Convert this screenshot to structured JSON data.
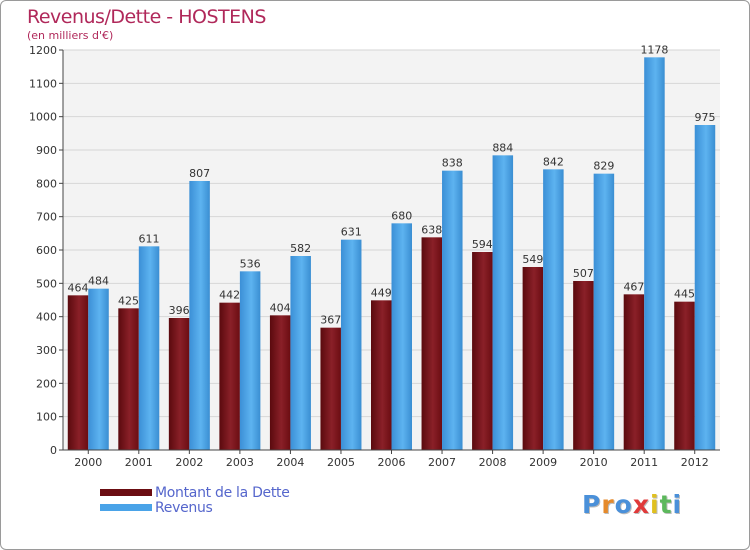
{
  "header": {
    "title": "Revenus/Dette - HOSTENS",
    "subtitle": "(en milliers d'€)"
  },
  "legend": {
    "items": [
      {
        "label": "Montant de la Dette",
        "color": "#6b0d12"
      },
      {
        "label": "Revenus",
        "color": "#4aa3e8"
      }
    ]
  },
  "logo": {
    "text": "Proxiti",
    "colors": [
      "#4a90d9",
      "#e58a2b",
      "#4a90d9",
      "#e03a3a",
      "#e0c020",
      "#5cb85c",
      "#4a90d9"
    ]
  },
  "chart_data": {
    "type": "bar",
    "title": "Revenus/Dette - HOSTENS",
    "subtitle": "(en milliers d'€)",
    "categories": [
      "2000",
      "2001",
      "2002",
      "2003",
      "2004",
      "2005",
      "2006",
      "2007",
      "2008",
      "2009",
      "2010",
      "2011",
      "2012"
    ],
    "series": [
      {
        "name": "Montant de la Dette",
        "color": "#6b0d12",
        "values": [
          464,
          425,
          396,
          442,
          404,
          367,
          449,
          638,
          594,
          549,
          507,
          467,
          445
        ]
      },
      {
        "name": "Revenus",
        "color": "#4aa3e8",
        "values": [
          484,
          611,
          807,
          536,
          582,
          631,
          680,
          838,
          884,
          842,
          829,
          1178,
          975
        ]
      }
    ],
    "ylim": [
      0,
      1200
    ],
    "yticks": [
      0,
      100,
      200,
      300,
      400,
      500,
      600,
      700,
      800,
      900,
      1000,
      1100,
      1200
    ],
    "grid": true,
    "legend_position": "bottom-left"
  }
}
